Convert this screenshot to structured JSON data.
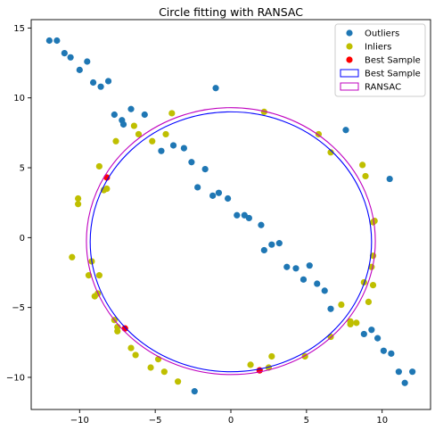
{
  "chart_data": {
    "type": "scatter",
    "title": "Circle fitting with RANSAC",
    "xlabel": "",
    "ylabel": "",
    "xlim": [
      -13.2,
      13.2
    ],
    "ylim": [
      -12.3,
      15.6
    ],
    "xticks": [
      -10,
      -5,
      0,
      5,
      10
    ],
    "yticks": [
      -10,
      -5,
      0,
      5,
      10,
      15
    ],
    "grid": false,
    "legend_position": "top-right",
    "series": [
      {
        "name": "Outliers",
        "kind": "points",
        "color": "#1f77b4",
        "points": [
          [
            -12.0,
            14.1
          ],
          [
            -11.5,
            14.1
          ],
          [
            -11.0,
            13.2
          ],
          [
            -10.6,
            12.9
          ],
          [
            -10.0,
            12.0
          ],
          [
            -9.5,
            12.6
          ],
          [
            -9.1,
            11.1
          ],
          [
            -8.6,
            10.8
          ],
          [
            -8.1,
            11.2
          ],
          [
            -7.7,
            8.8
          ],
          [
            -7.2,
            8.4
          ],
          [
            -7.1,
            8.1
          ],
          [
            -6.6,
            9.2
          ],
          [
            -5.7,
            8.8
          ],
          [
            -4.6,
            6.2
          ],
          [
            -3.8,
            6.6
          ],
          [
            -3.1,
            6.4
          ],
          [
            -2.6,
            5.4
          ],
          [
            -1.7,
            4.9
          ],
          [
            -2.2,
            3.6
          ],
          [
            -1.2,
            3.0
          ],
          [
            -0.8,
            3.2
          ],
          [
            -0.2,
            2.8
          ],
          [
            0.4,
            1.6
          ],
          [
            0.9,
            1.6
          ],
          [
            1.2,
            1.4
          ],
          [
            2.0,
            0.9
          ],
          [
            2.2,
            -0.9
          ],
          [
            2.7,
            -0.5
          ],
          [
            3.2,
            -0.4
          ],
          [
            3.7,
            -2.1
          ],
          [
            4.3,
            -2.2
          ],
          [
            4.8,
            -3.0
          ],
          [
            5.2,
            -2.0
          ],
          [
            5.7,
            -3.3
          ],
          [
            6.2,
            -3.8
          ],
          [
            6.6,
            -5.1
          ],
          [
            7.6,
            7.7
          ],
          [
            8.8,
            -6.9
          ],
          [
            9.3,
            -6.6
          ],
          [
            9.7,
            -7.2
          ],
          [
            10.1,
            -8.1
          ],
          [
            10.6,
            -8.3
          ],
          [
            11.1,
            -9.6
          ],
          [
            11.5,
            -10.4
          ],
          [
            12.0,
            -9.6
          ],
          [
            10.5,
            4.2
          ],
          [
            -1.0,
            10.7
          ],
          [
            -2.4,
            -11.0
          ]
        ]
      },
      {
        "name": "Inliers",
        "kind": "points",
        "color": "#bfbf00",
        "points": [
          [
            -10.1,
            2.8
          ],
          [
            -10.1,
            2.4
          ],
          [
            -10.5,
            -1.4
          ],
          [
            -9.2,
            -1.7
          ],
          [
            -9.4,
            -2.7
          ],
          [
            -8.7,
            -2.7
          ],
          [
            -9.0,
            -4.2
          ],
          [
            -8.8,
            -4.0
          ],
          [
            -7.7,
            -5.9
          ],
          [
            -7.5,
            -6.4
          ],
          [
            -7.5,
            -6.7
          ],
          [
            -6.6,
            -7.9
          ],
          [
            -6.3,
            -8.4
          ],
          [
            -5.3,
            -9.3
          ],
          [
            -4.8,
            -8.7
          ],
          [
            -4.4,
            -9.6
          ],
          [
            -3.5,
            -10.3
          ],
          [
            -8.7,
            5.1
          ],
          [
            -8.4,
            3.4
          ],
          [
            -7.6,
            6.9
          ],
          [
            -6.4,
            8.0
          ],
          [
            -6.1,
            7.4
          ],
          [
            -5.2,
            6.9
          ],
          [
            -4.3,
            7.4
          ],
          [
            -3.9,
            8.9
          ],
          [
            2.2,
            9.0
          ],
          [
            5.8,
            7.4
          ],
          [
            6.6,
            6.1
          ],
          [
            8.7,
            5.2
          ],
          [
            8.9,
            4.4
          ],
          [
            9.5,
            1.2
          ],
          [
            9.4,
            1.1
          ],
          [
            9.4,
            -1.3
          ],
          [
            9.3,
            -2.1
          ],
          [
            9.4,
            -3.4
          ],
          [
            8.8,
            -3.2
          ],
          [
            9.1,
            -4.6
          ],
          [
            8.3,
            -6.1
          ],
          [
            7.9,
            -6.0
          ],
          [
            7.3,
            -4.8
          ],
          [
            6.6,
            -7.1
          ],
          [
            7.9,
            -6.2
          ],
          [
            4.9,
            -8.5
          ],
          [
            2.7,
            -8.5
          ],
          [
            2.5,
            -9.3
          ],
          [
            1.3,
            -9.1
          ],
          [
            -8.2,
            3.5
          ]
        ]
      },
      {
        "name": "Best Sample",
        "kind": "points",
        "color": "#ff0000",
        "points": [
          [
            -8.2,
            4.3
          ],
          [
            -7.0,
            -6.5
          ],
          [
            1.9,
            -9.5
          ]
        ]
      },
      {
        "name": "Best Sample",
        "kind": "circle",
        "color": "#0000ff",
        "center": [
          0.0,
          -0.3
        ],
        "radius": 9.3
      },
      {
        "name": "RANSAC",
        "kind": "circle",
        "color": "#bf00bf",
        "center": [
          0.0,
          -0.25
        ],
        "radius": 9.55
      }
    ]
  }
}
